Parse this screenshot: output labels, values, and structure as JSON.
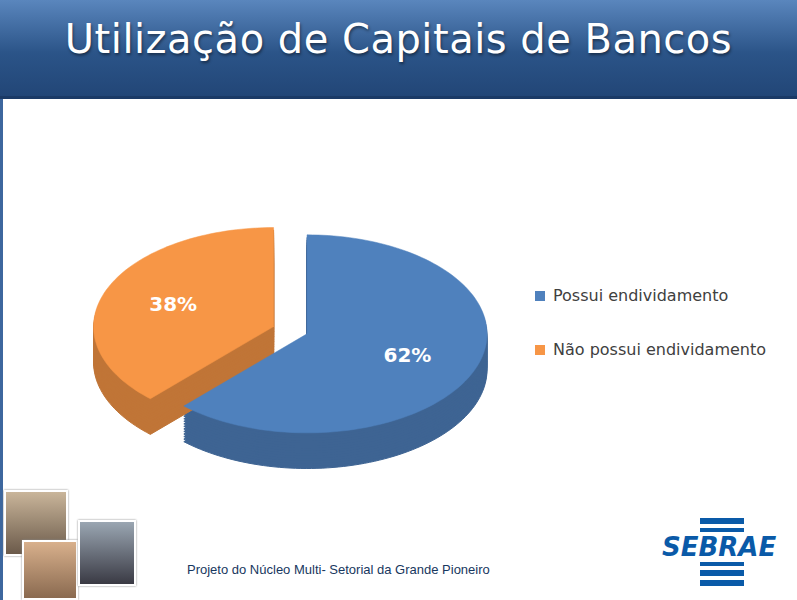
{
  "chart_data": {
    "type": "pie",
    "title": "Utilização de Capitais de Bancos",
    "categories": [
      "Possui endividamento",
      "Não possui endividamento"
    ],
    "values": [
      62,
      38
    ],
    "value_labels": [
      "62%",
      "38%"
    ],
    "colors": [
      "#4f81bd",
      "#f79646"
    ],
    "data_labels": true,
    "legend": "right",
    "tick_labels": false,
    "annotations": [
      "Projeto do Núcleo Multi- Setorial da Grande Pioneiro",
      "SEBRAE"
    ]
  }
}
